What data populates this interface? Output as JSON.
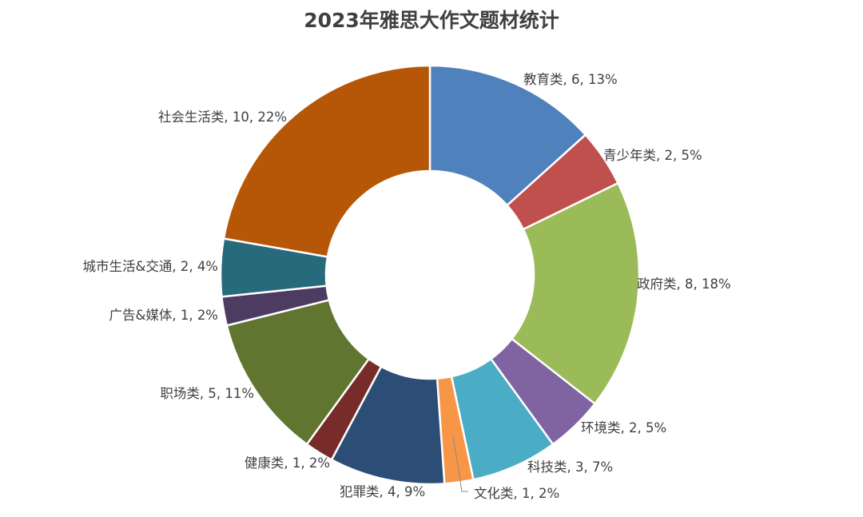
{
  "chart_data": {
    "type": "pie",
    "subtype": "donut",
    "title": "2023年雅思大作文题材统计",
    "legend": "none",
    "slices": [
      {
        "name": "教育类",
        "value": 6,
        "percent_label": "13%",
        "color": "#4f81bd"
      },
      {
        "name": "青少年类",
        "value": 2,
        "percent_label": "5%",
        "color": "#c0504d"
      },
      {
        "name": "政府类",
        "value": 8,
        "percent_label": "18%",
        "color": "#9bbb59"
      },
      {
        "name": "环境类",
        "value": 2,
        "percent_label": "5%",
        "color": "#8064a2"
      },
      {
        "name": "科技类",
        "value": 3,
        "percent_label": "7%",
        "color": "#4bacc6"
      },
      {
        "name": "文化类",
        "value": 1,
        "percent_label": "2%",
        "color": "#f79646"
      },
      {
        "name": "犯罪类",
        "value": 4,
        "percent_label": "9%",
        "color": "#2c4d75"
      },
      {
        "name": "健康类",
        "value": 1,
        "percent_label": "2%",
        "color": "#772c2a"
      },
      {
        "name": "职场类",
        "value": 5,
        "percent_label": "11%",
        "color": "#5f7530"
      },
      {
        "name": "广告&媒体",
        "value": 1,
        "percent_label": "2%",
        "color": "#4d3b62"
      },
      {
        "name": "城市生活&交通",
        "value": 2,
        "percent_label": "4%",
        "color": "#276a7c"
      },
      {
        "name": "社会生活类",
        "value": 10,
        "percent_label": "22%",
        "color": "#b65708"
      }
    ]
  }
}
